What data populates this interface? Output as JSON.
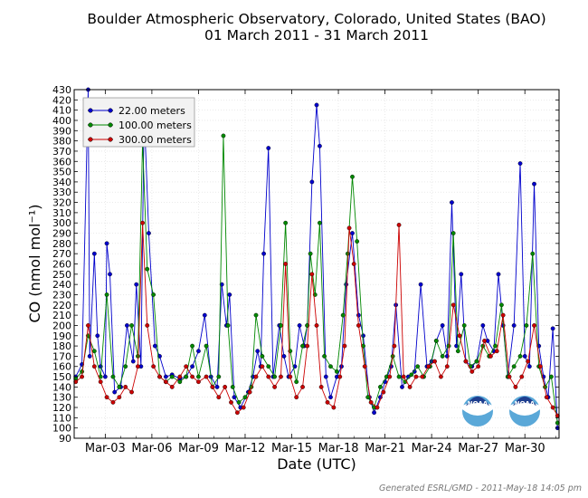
{
  "chart_data": {
    "type": "line",
    "title": "Boulder Atmospheric Observatory, Colorado, United States (BAO)",
    "subtitle": "01 March 2011 - 31 March 2011",
    "xlabel": "Date (UTC)",
    "ylabel": "CO (nmol mol⁻¹)",
    "x_ticks": [
      "Mar-03",
      "Mar-06",
      "Mar-09",
      "Mar-12",
      "Mar-15",
      "Mar-18",
      "Mar-21",
      "Mar-24",
      "Mar-27",
      "Mar-30"
    ],
    "y_ticks": [
      90,
      100,
      110,
      120,
      130,
      140,
      150,
      160,
      170,
      180,
      190,
      200,
      210,
      220,
      230,
      240,
      250,
      260,
      270,
      280,
      290,
      300,
      310,
      320,
      330,
      340,
      350,
      360,
      370,
      380,
      390,
      400,
      410,
      420,
      430
    ],
    "xlim_days": [
      1,
      32.2
    ],
    "ylim": [
      90,
      430
    ],
    "grid": true,
    "legend_position": "top-left",
    "series": [
      {
        "name": "22.00 meters",
        "color": "#0000cc",
        "points": [
          [
            1.1,
            150
          ],
          [
            1.5,
            162
          ],
          [
            1.9,
            430
          ],
          [
            2.0,
            170
          ],
          [
            2.3,
            270
          ],
          [
            2.5,
            190
          ],
          [
            2.7,
            160
          ],
          [
            3.0,
            150
          ],
          [
            3.1,
            280
          ],
          [
            3.3,
            250
          ],
          [
            3.6,
            135
          ],
          [
            4.0,
            140
          ],
          [
            4.4,
            200
          ],
          [
            4.8,
            165
          ],
          [
            5.0,
            240
          ],
          [
            5.3,
            160
          ],
          [
            5.5,
            410
          ],
          [
            5.8,
            290
          ],
          [
            6.2,
            180
          ],
          [
            6.5,
            170
          ],
          [
            6.9,
            150
          ],
          [
            7.3,
            152
          ],
          [
            7.8,
            148
          ],
          [
            8.2,
            150
          ],
          [
            8.6,
            160
          ],
          [
            9.0,
            175
          ],
          [
            9.4,
            210
          ],
          [
            9.8,
            150
          ],
          [
            10.2,
            140
          ],
          [
            10.5,
            240
          ],
          [
            10.8,
            200
          ],
          [
            11.0,
            230
          ],
          [
            11.3,
            130
          ],
          [
            11.7,
            120
          ],
          [
            12.2,
            135
          ],
          [
            12.5,
            150
          ],
          [
            12.8,
            175
          ],
          [
            13.0,
            160
          ],
          [
            13.2,
            270
          ],
          [
            13.5,
            373
          ],
          [
            13.8,
            150
          ],
          [
            14.2,
            200
          ],
          [
            14.5,
            170
          ],
          [
            14.8,
            150
          ],
          [
            15.2,
            160
          ],
          [
            15.5,
            200
          ],
          [
            15.8,
            180
          ],
          [
            16.0,
            200
          ],
          [
            16.3,
            340
          ],
          [
            16.6,
            415
          ],
          [
            16.8,
            375
          ],
          [
            17.2,
            150
          ],
          [
            17.5,
            130
          ],
          [
            17.9,
            150
          ],
          [
            18.2,
            160
          ],
          [
            18.5,
            240
          ],
          [
            18.9,
            290
          ],
          [
            19.3,
            210
          ],
          [
            19.6,
            190
          ],
          [
            20.0,
            130
          ],
          [
            20.3,
            115
          ],
          [
            20.7,
            130
          ],
          [
            21.0,
            145
          ],
          [
            21.4,
            160
          ],
          [
            21.7,
            220
          ],
          [
            22.1,
            140
          ],
          [
            22.5,
            150
          ],
          [
            22.9,
            155
          ],
          [
            23.3,
            240
          ],
          [
            23.7,
            160
          ],
          [
            24.0,
            165
          ],
          [
            24.3,
            185
          ],
          [
            24.7,
            200
          ],
          [
            25.0,
            170
          ],
          [
            25.3,
            320
          ],
          [
            25.6,
            180
          ],
          [
            25.9,
            250
          ],
          [
            26.2,
            165
          ],
          [
            26.6,
            160
          ],
          [
            26.9,
            165
          ],
          [
            27.3,
            200
          ],
          [
            27.6,
            185
          ],
          [
            28.0,
            175
          ],
          [
            28.3,
            250
          ],
          [
            28.6,
            200
          ],
          [
            28.9,
            150
          ],
          [
            29.3,
            200
          ],
          [
            29.7,
            358
          ],
          [
            30.0,
            170
          ],
          [
            30.3,
            160
          ],
          [
            30.6,
            338
          ],
          [
            30.9,
            180
          ],
          [
            31.2,
            150
          ],
          [
            31.5,
            130
          ],
          [
            31.8,
            197
          ],
          [
            32.1,
            100
          ]
        ]
      },
      {
        "name": "100.00 meters",
        "color": "#008800",
        "points": [
          [
            1.1,
            148
          ],
          [
            1.5,
            155
          ],
          [
            1.9,
            190
          ],
          [
            2.3,
            175
          ],
          [
            2.7,
            150
          ],
          [
            3.1,
            230
          ],
          [
            3.5,
            150
          ],
          [
            3.9,
            140
          ],
          [
            4.3,
            160
          ],
          [
            4.7,
            200
          ],
          [
            5.1,
            170
          ],
          [
            5.4,
            380
          ],
          [
            5.7,
            255
          ],
          [
            6.1,
            230
          ],
          [
            6.5,
            150
          ],
          [
            6.9,
            145
          ],
          [
            7.3,
            150
          ],
          [
            7.8,
            145
          ],
          [
            8.2,
            150
          ],
          [
            8.6,
            180
          ],
          [
            9.0,
            150
          ],
          [
            9.5,
            180
          ],
          [
            9.9,
            140
          ],
          [
            10.3,
            150
          ],
          [
            10.6,
            385
          ],
          [
            10.9,
            200
          ],
          [
            11.2,
            140
          ],
          [
            11.6,
            125
          ],
          [
            12.0,
            130
          ],
          [
            12.4,
            140
          ],
          [
            12.7,
            210
          ],
          [
            13.1,
            170
          ],
          [
            13.5,
            160
          ],
          [
            13.9,
            150
          ],
          [
            14.3,
            200
          ],
          [
            14.6,
            300
          ],
          [
            14.9,
            175
          ],
          [
            15.3,
            145
          ],
          [
            15.7,
            180
          ],
          [
            16.0,
            200
          ],
          [
            16.2,
            270
          ],
          [
            16.5,
            230
          ],
          [
            16.8,
            300
          ],
          [
            17.1,
            170
          ],
          [
            17.5,
            160
          ],
          [
            17.9,
            155
          ],
          [
            18.3,
            210
          ],
          [
            18.6,
            270
          ],
          [
            18.9,
            345
          ],
          [
            19.2,
            282
          ],
          [
            19.6,
            180
          ],
          [
            19.9,
            130
          ],
          [
            20.3,
            120
          ],
          [
            20.7,
            140
          ],
          [
            21.1,
            150
          ],
          [
            21.5,
            170
          ],
          [
            21.9,
            150
          ],
          [
            22.3,
            145
          ],
          [
            22.7,
            152
          ],
          [
            23.1,
            160
          ],
          [
            23.5,
            150
          ],
          [
            23.9,
            160
          ],
          [
            24.3,
            185
          ],
          [
            24.7,
            170
          ],
          [
            25.1,
            180
          ],
          [
            25.4,
            290
          ],
          [
            25.7,
            175
          ],
          [
            26.1,
            200
          ],
          [
            26.5,
            160
          ],
          [
            26.9,
            165
          ],
          [
            27.3,
            180
          ],
          [
            27.7,
            170
          ],
          [
            28.1,
            180
          ],
          [
            28.5,
            220
          ],
          [
            28.9,
            150
          ],
          [
            29.3,
            160
          ],
          [
            29.7,
            170
          ],
          [
            30.1,
            200
          ],
          [
            30.5,
            270
          ],
          [
            30.9,
            160
          ],
          [
            31.3,
            140
          ],
          [
            31.7,
            150
          ],
          [
            32.1,
            105
          ]
        ]
      },
      {
        "name": "300.00 meters",
        "color": "#cc0000",
        "points": [
          [
            1.1,
            145
          ],
          [
            1.5,
            150
          ],
          [
            1.9,
            200
          ],
          [
            2.3,
            160
          ],
          [
            2.7,
            145
          ],
          [
            3.1,
            130
          ],
          [
            3.5,
            125
          ],
          [
            3.9,
            130
          ],
          [
            4.3,
            140
          ],
          [
            4.7,
            135
          ],
          [
            5.1,
            160
          ],
          [
            5.4,
            300
          ],
          [
            5.7,
            200
          ],
          [
            6.1,
            160
          ],
          [
            6.5,
            150
          ],
          [
            6.9,
            145
          ],
          [
            7.3,
            140
          ],
          [
            7.8,
            150
          ],
          [
            8.2,
            160
          ],
          [
            8.6,
            150
          ],
          [
            9.0,
            145
          ],
          [
            9.5,
            150
          ],
          [
            9.9,
            140
          ],
          [
            10.3,
            130
          ],
          [
            10.7,
            140
          ],
          [
            11.1,
            125
          ],
          [
            11.5,
            115
          ],
          [
            11.9,
            120
          ],
          [
            12.3,
            135
          ],
          [
            12.7,
            150
          ],
          [
            13.1,
            160
          ],
          [
            13.5,
            150
          ],
          [
            13.9,
            140
          ],
          [
            14.3,
            150
          ],
          [
            14.6,
            260
          ],
          [
            14.9,
            150
          ],
          [
            15.3,
            130
          ],
          [
            15.7,
            140
          ],
          [
            16.0,
            180
          ],
          [
            16.3,
            250
          ],
          [
            16.6,
            200
          ],
          [
            16.9,
            140
          ],
          [
            17.3,
            125
          ],
          [
            17.7,
            120
          ],
          [
            18.1,
            150
          ],
          [
            18.4,
            180
          ],
          [
            18.7,
            295
          ],
          [
            19.0,
            260
          ],
          [
            19.3,
            200
          ],
          [
            19.7,
            160
          ],
          [
            20.1,
            125
          ],
          [
            20.5,
            120
          ],
          [
            20.9,
            135
          ],
          [
            21.3,
            150
          ],
          [
            21.6,
            180
          ],
          [
            21.9,
            298
          ],
          [
            22.2,
            150
          ],
          [
            22.6,
            140
          ],
          [
            23.0,
            150
          ],
          [
            23.4,
            150
          ],
          [
            23.8,
            160
          ],
          [
            24.2,
            165
          ],
          [
            24.6,
            150
          ],
          [
            25.0,
            160
          ],
          [
            25.4,
            220
          ],
          [
            25.8,
            190
          ],
          [
            26.2,
            165
          ],
          [
            26.6,
            155
          ],
          [
            27.0,
            160
          ],
          [
            27.4,
            185
          ],
          [
            27.8,
            170
          ],
          [
            28.2,
            175
          ],
          [
            28.6,
            210
          ],
          [
            29.0,
            150
          ],
          [
            29.4,
            140
          ],
          [
            29.8,
            150
          ],
          [
            30.2,
            165
          ],
          [
            30.6,
            200
          ],
          [
            31.0,
            160
          ],
          [
            31.4,
            130
          ],
          [
            31.8,
            120
          ],
          [
            32.1,
            112
          ]
        ]
      }
    ]
  },
  "logos": [
    {
      "name": "noaa-logo-left",
      "text": "NOAA"
    },
    {
      "name": "noaa-logo-right",
      "text": "NOAA"
    }
  ],
  "footer": "Generated ESRL/GMD - 2011-May-18 14:05 pm"
}
